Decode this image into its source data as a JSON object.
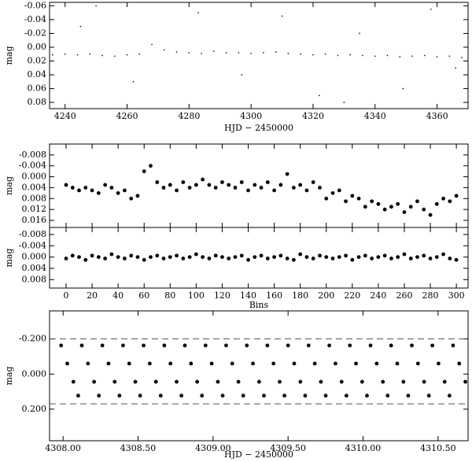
{
  "chart_data": [
    {
      "type": "scatter",
      "x_label": "HJD − 2450000",
      "y_label": "mag",
      "y_inverted": true,
      "color": "#222222",
      "xlim": [
        4235,
        4370
      ],
      "ylim": [
        -0.065,
        0.089
      ],
      "xticks": [
        4240,
        4260,
        4280,
        4300,
        4320,
        4340,
        4360
      ],
      "yticks": [
        -0.06,
        -0.04,
        -0.02,
        {
          "value": 0,
          "label": "0.00"
        },
        0.02,
        0.04,
        0.06,
        0.08
      ],
      "x": [
        4236,
        4240,
        4244,
        4248,
        4252,
        4256,
        4260,
        4264,
        4268,
        4272,
        4276,
        4280,
        4284,
        4288,
        4292,
        4296,
        4300,
        4304,
        4308,
        4312,
        4316,
        4320,
        4324,
        4328,
        4332,
        4336,
        4340,
        4344,
        4348,
        4352,
        4356,
        4360,
        4364,
        4368,
        4245,
        4262,
        4283,
        4297,
        4310,
        4322,
        4335,
        4349,
        4358,
        4366,
        4330,
        4250
      ],
      "values": [
        0.011,
        0.01,
        0.011,
        0.01,
        0.012,
        0.013,
        0.011,
        0.01,
        -0.004,
        0.004,
        0.007,
        0.008,
        0.009,
        0.006,
        0.008,
        0.008,
        0.009,
        0.008,
        0.007,
        0.009,
        0.01,
        0.011,
        0.01,
        0.012,
        0.011,
        0.012,
        0.013,
        0.012,
        0.014,
        0.013,
        0.012,
        0.014,
        0.013,
        0.015,
        -0.03,
        0.05,
        -0.05,
        0.04,
        -0.045,
        0.07,
        -0.02,
        0.06,
        -0.055,
        0.03,
        0.08,
        -0.06
      ]
    },
    {
      "type": "scatter",
      "y_label": "mag",
      "y_inverted": true,
      "color": "#000000",
      "xlim": [
        -12.7,
        309
      ],
      "ylim": [
        -0.012,
        0.0186
      ],
      "yticks": [
        -0.008,
        -0.004,
        {
          "value": 0,
          "label": "0.000"
        },
        0.004,
        0.008,
        0.012,
        0.016
      ],
      "x": [
        0,
        5,
        10,
        15,
        20,
        25,
        30,
        35,
        40,
        45,
        50,
        55,
        60,
        65,
        70,
        75,
        80,
        85,
        90,
        95,
        100,
        105,
        110,
        115,
        120,
        125,
        130,
        135,
        140,
        145,
        150,
        155,
        160,
        165,
        170,
        175,
        180,
        185,
        190,
        195,
        200,
        205,
        210,
        215,
        220,
        225,
        230,
        235,
        240,
        245,
        250,
        255,
        260,
        265,
        270,
        275,
        280,
        285,
        290,
        295,
        300
      ],
      "values": [
        0.003,
        0.004,
        0.005,
        0.004,
        0.005,
        0.006,
        0.003,
        0.004,
        0.006,
        0.005,
        0.008,
        0.007,
        -0.002,
        -0.004,
        0.002,
        0.004,
        0.003,
        0.005,
        0.002,
        0.004,
        0.003,
        0.001,
        0.003,
        0.004,
        0.002,
        0.003,
        0.004,
        0.002,
        0.005,
        0.003,
        0.004,
        0.002,
        0.005,
        0.003,
        -0.001,
        0.004,
        0.003,
        0.005,
        0.002,
        0.004,
        0.008,
        0.006,
        0.005,
        0.009,
        0.007,
        0.008,
        0.011,
        0.009,
        0.01,
        0.012,
        0.011,
        0.01,
        0.013,
        0.011,
        0.009,
        0.012,
        0.014,
        0.01,
        0.008,
        0.009,
        0.007
      ]
    },
    {
      "type": "scatter",
      "x_label": "Bins",
      "y_label": "mag",
      "y_inverted": true,
      "color": "#000000",
      "xlim": [
        -12.7,
        309
      ],
      "ylim": [
        -0.0105,
        0.011
      ],
      "xticks": [
        0,
        20,
        40,
        60,
        80,
        100,
        120,
        140,
        160,
        180,
        200,
        220,
        240,
        260,
        280,
        300
      ],
      "yticks": [
        -0.008,
        -0.004,
        {
          "value": 0,
          "label": "0.000"
        },
        0.004,
        0.008
      ],
      "x": [
        0,
        5,
        10,
        15,
        20,
        25,
        30,
        35,
        40,
        45,
        50,
        55,
        60,
        65,
        70,
        75,
        80,
        85,
        90,
        95,
        100,
        105,
        110,
        115,
        120,
        125,
        130,
        135,
        140,
        145,
        150,
        155,
        160,
        165,
        170,
        175,
        180,
        185,
        190,
        195,
        200,
        205,
        210,
        215,
        220,
        225,
        230,
        235,
        240,
        245,
        250,
        255,
        260,
        265,
        270,
        275,
        280,
        285,
        290,
        295,
        300
      ],
      "values": [
        0.0005,
        -0.0005,
        0,
        0.001,
        -0.0005,
        0,
        0.0005,
        -0.001,
        0,
        0.0005,
        -0.0005,
        0,
        0.001,
        0,
        -0.0005,
        0.0005,
        0,
        -0.0005,
        0.0005,
        0,
        -0.001,
        0,
        0.0005,
        -0.0005,
        0,
        0.0005,
        0,
        -0.0005,
        0.001,
        0,
        -0.0005,
        0.0005,
        0,
        -0.0005,
        0.0005,
        0.001,
        -0.001,
        0,
        0.0005,
        -0.0005,
        0,
        0.0005,
        0,
        -0.0005,
        0.001,
        0,
        -0.0005,
        0.0005,
        0,
        -0.0005,
        0.0005,
        0,
        -0.001,
        0.0005,
        0,
        -0.0005,
        0.0005,
        0,
        -0.001,
        0.0005,
        0.001
      ]
    },
    {
      "type": "scatter",
      "x_label": "HJD − 2450000",
      "y_label": "mag",
      "y_inverted": true,
      "color": "#000000",
      "reference_lines": [
        -0.2,
        0.17
      ],
      "xlim": [
        4307.91,
        4310.7
      ],
      "ylim": [
        -0.36,
        0.38
      ],
      "xticks": [
        {
          "value": 4308,
          "label": "4308.00"
        },
        {
          "value": 4308.5,
          "label": "4308.50"
        },
        {
          "value": 4309,
          "label": "4309.00"
        },
        {
          "value": 4309.5,
          "label": "4309.50"
        },
        {
          "value": 4310,
          "label": "4310.00"
        },
        {
          "value": 4310.5,
          "label": "4310.50"
        }
      ],
      "yticks": [
        {
          "value": -0.2,
          "label": "-0.200"
        },
        {
          "value": 0,
          "label": "0.000"
        },
        {
          "value": 0.2,
          "label": "0.200"
        }
      ],
      "x": [
        4307.987,
        4308.028,
        4308.069,
        4308.101,
        4308.125,
        4308.166,
        4308.207,
        4308.239,
        4308.262,
        4308.303,
        4308.344,
        4308.376,
        4308.4,
        4308.441,
        4308.482,
        4308.514,
        4308.537,
        4308.578,
        4308.619,
        4308.651,
        4308.675,
        4308.716,
        4308.757,
        4308.789,
        4308.812,
        4308.853,
        4308.894,
        4308.926,
        4308.95,
        4308.991,
        4309.032,
        4309.064,
        4309.087,
        4309.128,
        4309.169,
        4309.201,
        4309.225,
        4309.266,
        4309.307,
        4309.339,
        4309.362,
        4309.403,
        4309.444,
        4309.476,
        4309.5,
        4309.541,
        4309.582,
        4309.614,
        4309.637,
        4309.678,
        4309.719,
        4309.751,
        4309.775,
        4309.816,
        4309.857,
        4309.889,
        4309.912,
        4309.953,
        4309.994,
        4310.026,
        4310.05,
        4310.091,
        4310.132,
        4310.164,
        4310.187,
        4310.228,
        4310.269,
        4310.301,
        4310.325,
        4310.366,
        4310.407,
        4310.439,
        4310.462,
        4310.503,
        4310.544,
        4310.576,
        4310.6,
        4310.641,
        4310.682
      ],
      "values": [
        -0.163,
        -0.06,
        0.044,
        0.123,
        -0.163,
        -0.06,
        0.044,
        0.123,
        -0.163,
        -0.06,
        0.044,
        0.123,
        -0.163,
        -0.06,
        0.044,
        0.123,
        -0.163,
        -0.06,
        0.044,
        0.123,
        -0.163,
        -0.06,
        0.044,
        0.123,
        -0.163,
        -0.06,
        0.044,
        0.123,
        -0.163,
        -0.06,
        0.044,
        0.123,
        -0.163,
        -0.06,
        0.044,
        0.123,
        -0.163,
        -0.06,
        0.044,
        0.123,
        -0.163,
        -0.06,
        0.044,
        0.123,
        -0.163,
        -0.06,
        0.044,
        0.123,
        -0.163,
        -0.06,
        0.044,
        0.123,
        -0.163,
        -0.06,
        0.044,
        0.123,
        -0.163,
        -0.06,
        0.044,
        0.123,
        -0.163,
        -0.06,
        0.044,
        0.123,
        -0.163,
        -0.06,
        0.044,
        0.123,
        -0.163,
        -0.06,
        0.044,
        0.123,
        -0.163,
        -0.06,
        0.044,
        0.123,
        -0.163,
        -0.06,
        0.044
      ]
    }
  ]
}
